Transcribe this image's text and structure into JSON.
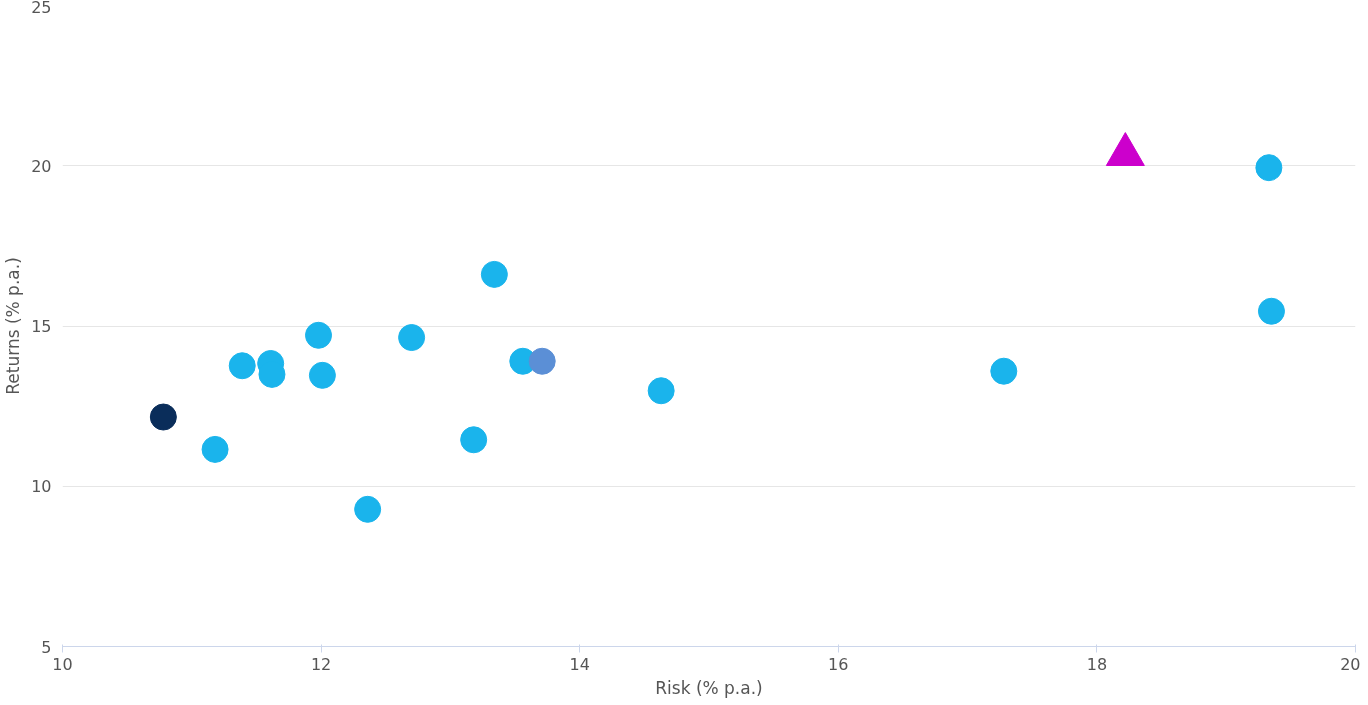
{
  "chart_data": {
    "type": "scatter",
    "xlabel": "Risk (% p.a.)",
    "ylabel": "Returns (% p.a.)",
    "xlim": [
      10,
      20
    ],
    "xticks": [
      10,
      12,
      14,
      16,
      18,
      20
    ],
    "ylim": [
      5,
      25
    ],
    "yticks": [
      5,
      10,
      15,
      20,
      25
    ],
    "grid": "y",
    "marker": "circle",
    "series": [
      {
        "color": "#0a2d5a",
        "x": [
          10.78
        ],
        "values": [
          12.16
        ]
      },
      {
        "color": "#1ab4ec",
        "x": [
          11.18,
          11.39,
          11.61,
          11.62,
          11.98,
          12.01,
          12.36,
          12.7,
          13.18,
          13.34,
          13.56,
          14.63,
          17.28,
          19.33,
          19.35
        ],
        "values": [
          11.15,
          13.76,
          13.83,
          13.49,
          14.71,
          13.46,
          9.28,
          14.64,
          11.45,
          16.61,
          13.9,
          12.98,
          13.59,
          19.94,
          15.46
        ]
      },
      {
        "color": "#5b8fd6",
        "x": [
          13.71
        ],
        "values": [
          13.9
        ]
      },
      {
        "color": "#cc00cc",
        "marker": "triangle",
        "x": [
          18.22
        ],
        "values": [
          20.35
        ]
      }
    ]
  }
}
